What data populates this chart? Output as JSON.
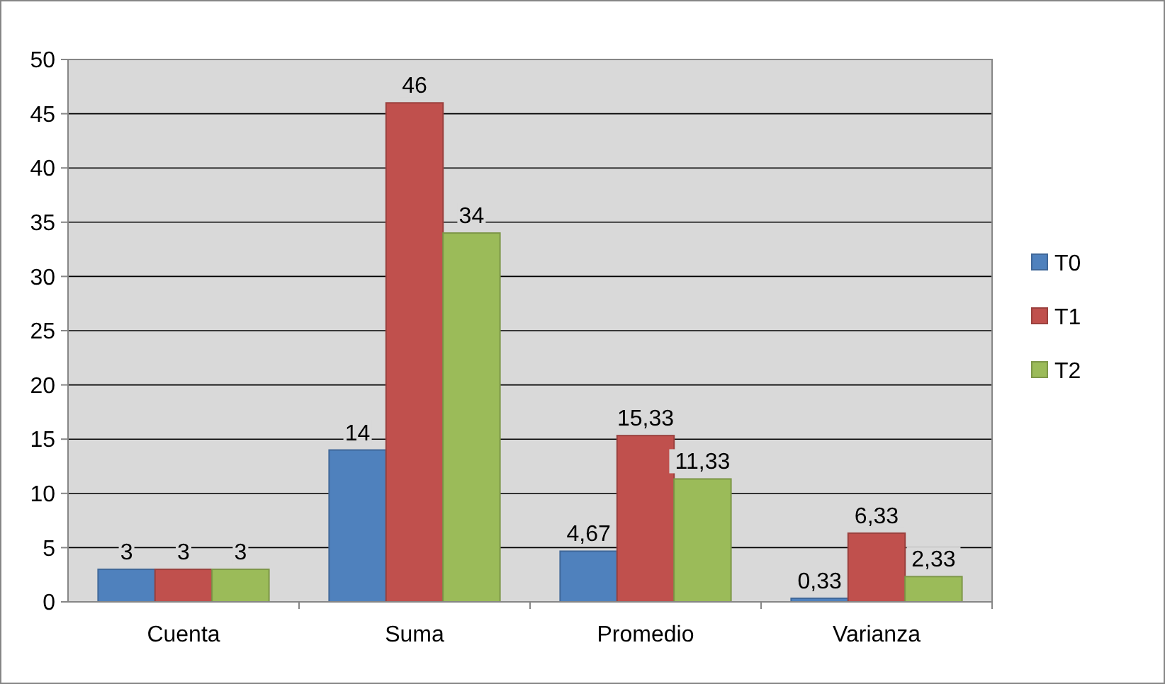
{
  "chart_data": {
    "type": "bar",
    "categories": [
      "Cuenta",
      "Suma",
      "Promedio",
      "Varianza"
    ],
    "series": [
      {
        "name": "T0",
        "color": "#4f81bd",
        "values": [
          3,
          14,
          4.67,
          0.33
        ],
        "value_labels": [
          "3",
          "14",
          "4,67",
          "0,33"
        ]
      },
      {
        "name": "T1",
        "color": "#c0504d",
        "values": [
          3,
          46,
          15.33,
          6.33
        ],
        "value_labels": [
          "3",
          "46",
          "15,33",
          "6,33"
        ]
      },
      {
        "name": "T2",
        "color": "#9bbb59",
        "values": [
          3,
          34,
          11.33,
          2.33
        ],
        "value_labels": [
          "3",
          "34",
          "11,33",
          "2,33"
        ]
      }
    ],
    "ylim": [
      0,
      50
    ],
    "yticks": [
      0,
      5,
      10,
      15,
      20,
      25,
      30,
      35,
      40,
      45,
      50
    ],
    "grid": "y",
    "legend": "right"
  }
}
